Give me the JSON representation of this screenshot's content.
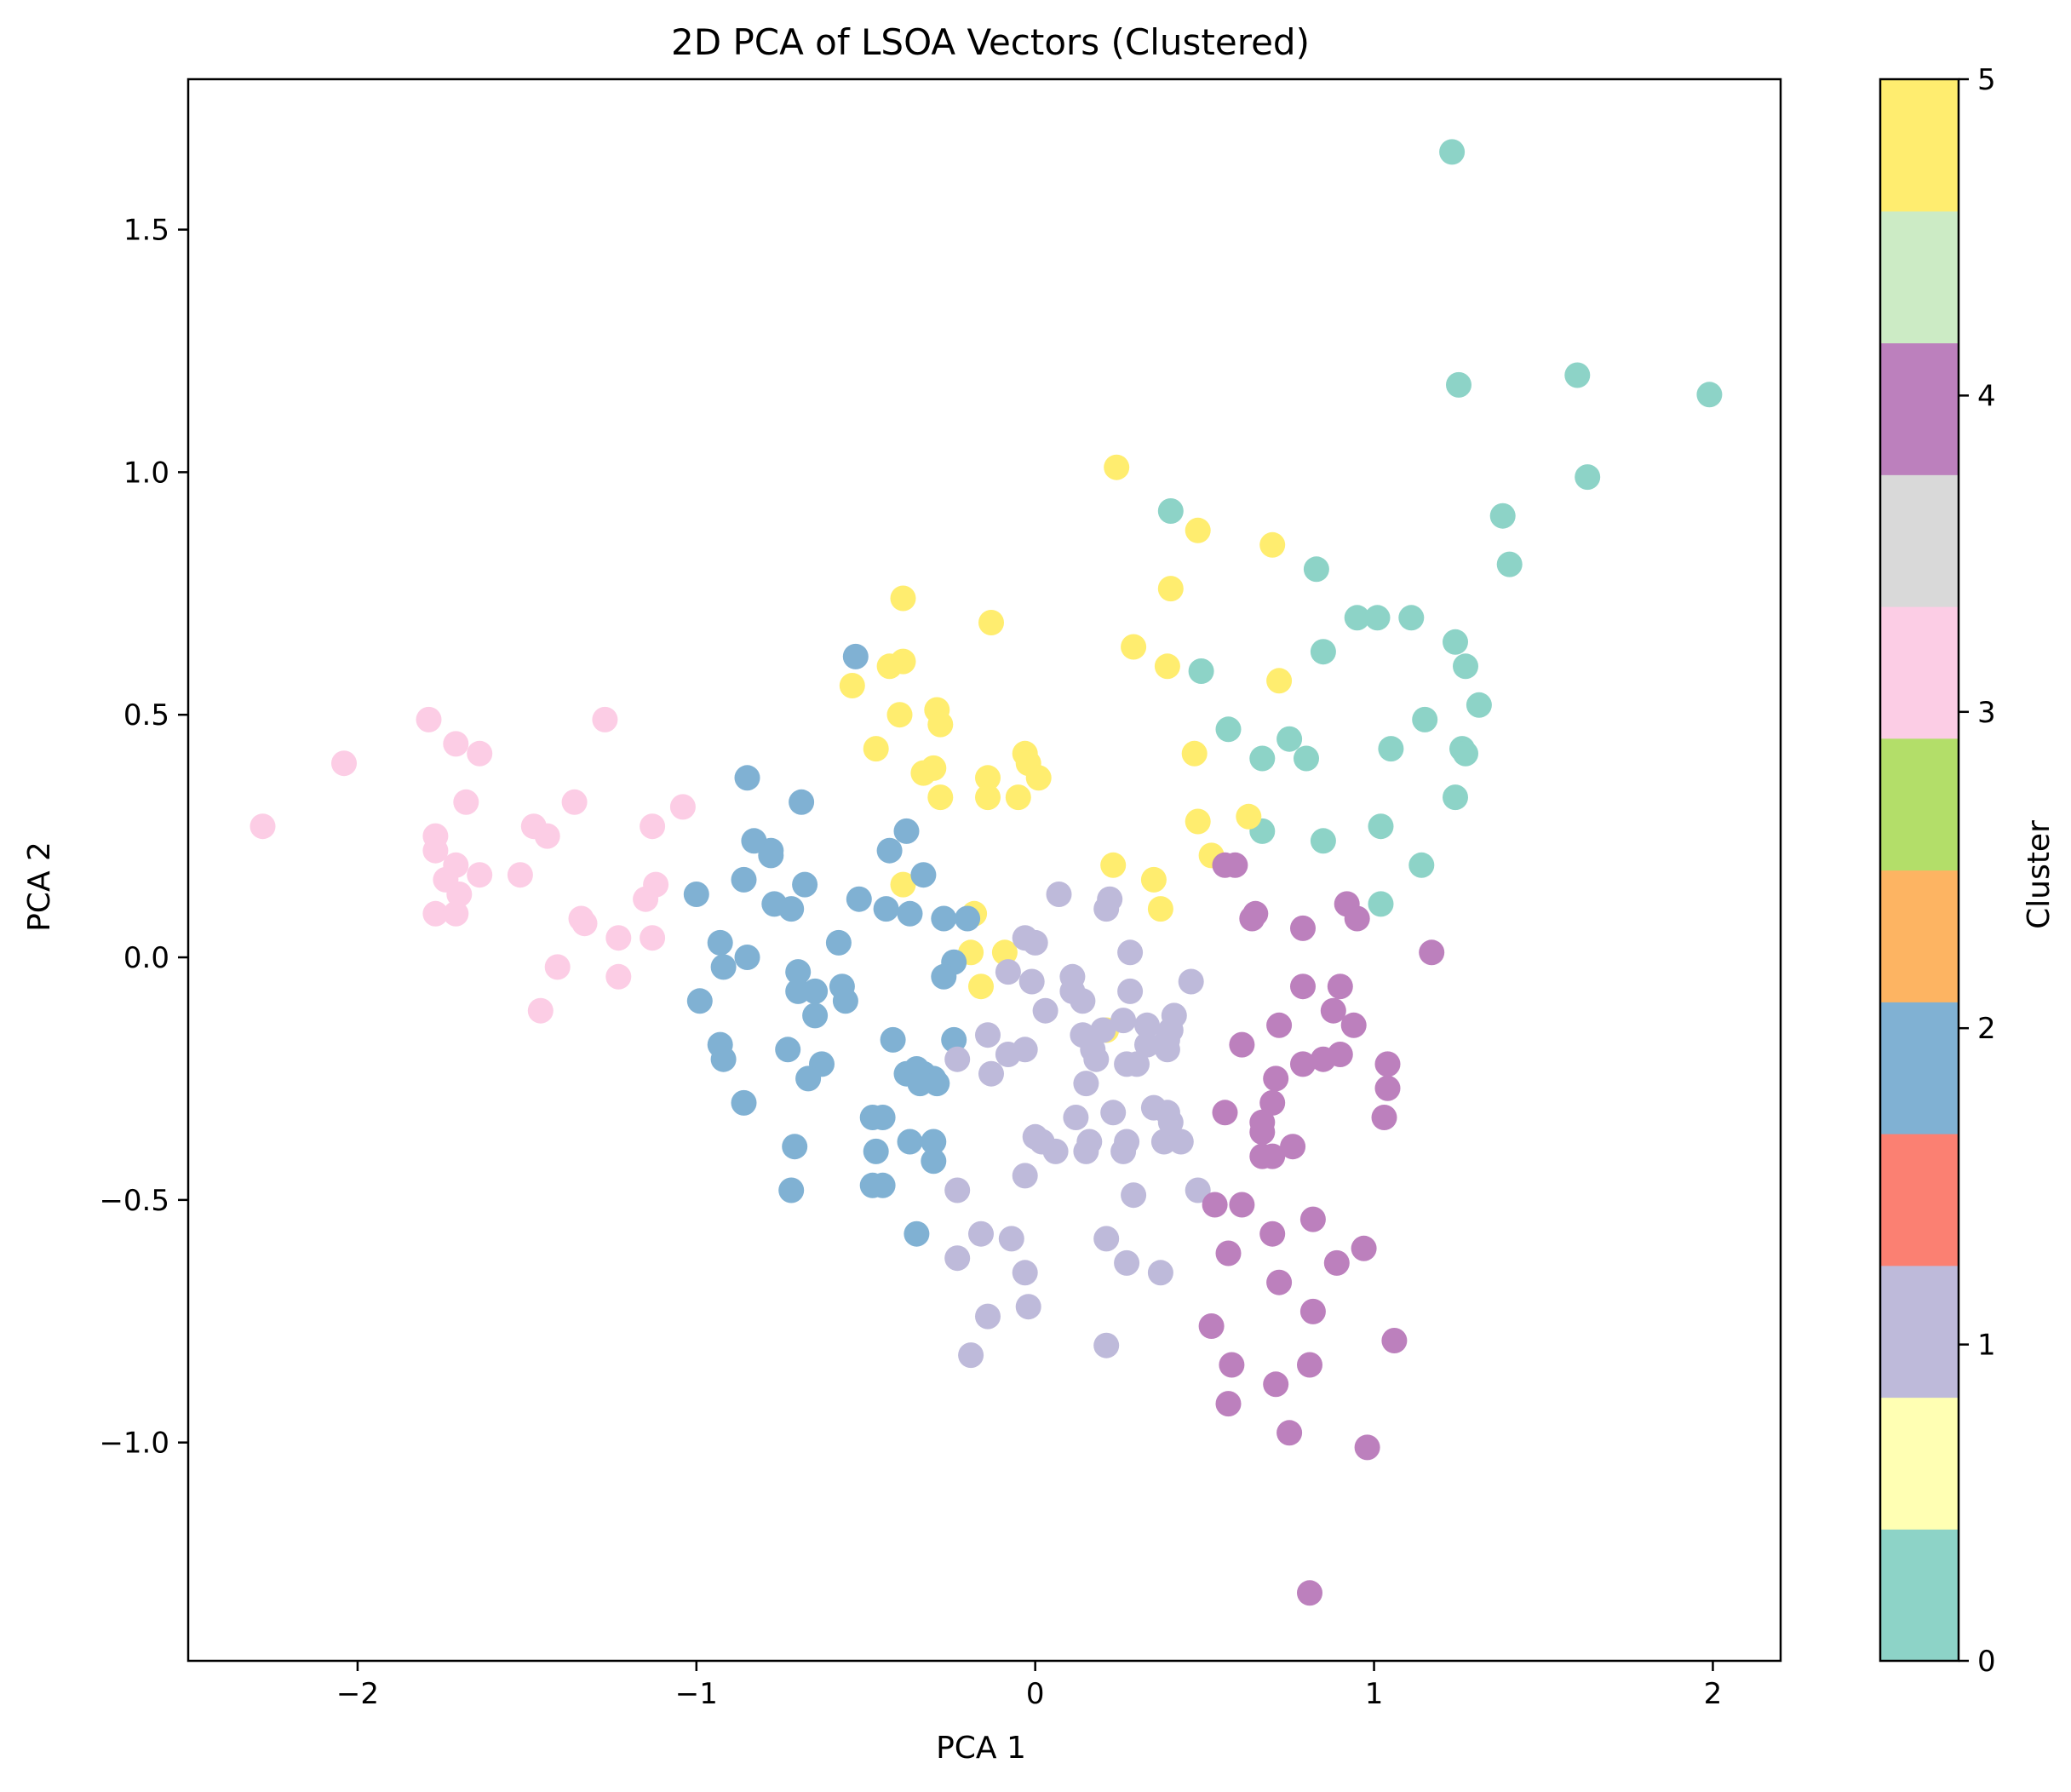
{
  "chart_data": {
    "type": "scatter",
    "title": "2D PCA of LSOA Vectors (Clustered)",
    "xlabel": "PCA 1",
    "ylabel": "PCA 2",
    "xlim": [
      -2.5,
      2.2
    ],
    "ylim": [
      -1.45,
      1.81
    ],
    "xticks": [
      -2,
      -1,
      0,
      1,
      2
    ],
    "xtick_labels": [
      "−2",
      "−1",
      "0",
      "1",
      "2"
    ],
    "yticks": [
      -1.0,
      -0.5,
      0.0,
      0.5,
      1.0,
      1.5
    ],
    "ytick_labels": [
      "−1.0",
      "−0.5",
      "0.0",
      "0.5",
      "1.0",
      "1.5"
    ],
    "grid": false,
    "colorbar": {
      "label": "Cluster",
      "range": [
        0,
        5
      ],
      "ticks": [
        0,
        1,
        2,
        3,
        4,
        5
      ],
      "tick_labels": [
        "0",
        "1",
        "2",
        "3",
        "4",
        "5"
      ],
      "colormap": "Set3",
      "bands": [
        "#8dd3c7",
        "#ffffb3",
        "#bebada",
        "#fb8072",
        "#80b1d3",
        "#fdb462",
        "#b3de69",
        "#fccde5",
        "#d9d9d9",
        "#bc80bd",
        "#ccebc5",
        "#ffed6f"
      ]
    },
    "cluster_colors": {
      "0": "#8dd3c7",
      "1": "#bebada",
      "2": "#80b1d3",
      "3": "#fccde5",
      "4": "#bc80bd",
      "5": "#ffed6f"
    },
    "series": [
      {
        "cluster": 0,
        "points": [
          [
            1.23,
            1.66
          ],
          [
            1.6,
            1.2
          ],
          [
            1.25,
            1.18
          ],
          [
            1.99,
            1.16
          ],
          [
            1.63,
            0.99
          ],
          [
            0.4,
            0.92
          ],
          [
            1.38,
            0.91
          ],
          [
            1.4,
            0.81
          ],
          [
            0.83,
            0.8
          ],
          [
            0.95,
            0.7
          ],
          [
            1.01,
            0.7
          ],
          [
            1.11,
            0.7
          ],
          [
            1.24,
            0.65
          ],
          [
            0.85,
            0.63
          ],
          [
            1.27,
            0.6
          ],
          [
            0.49,
            0.59
          ],
          [
            1.31,
            0.52
          ],
          [
            1.15,
            0.49
          ],
          [
            0.57,
            0.47
          ],
          [
            0.75,
            0.45
          ],
          [
            1.26,
            0.43
          ],
          [
            1.05,
            0.43
          ],
          [
            1.27,
            0.42
          ],
          [
            0.67,
            0.41
          ],
          [
            0.8,
            0.41
          ],
          [
            1.24,
            0.33
          ],
          [
            1.02,
            0.27
          ],
          [
            0.67,
            0.26
          ],
          [
            0.85,
            0.24
          ],
          [
            1.14,
            0.19
          ],
          [
            1.02,
            0.11
          ]
        ]
      },
      {
        "cluster": 5,
        "points": [
          [
            0.24,
            1.01
          ],
          [
            0.48,
            0.88
          ],
          [
            0.7,
            0.85
          ],
          [
            -0.39,
            0.74
          ],
          [
            0.4,
            0.76
          ],
          [
            -0.13,
            0.69
          ],
          [
            0.29,
            0.64
          ],
          [
            -0.39,
            0.61
          ],
          [
            -0.43,
            0.6
          ],
          [
            0.39,
            0.6
          ],
          [
            0.72,
            0.57
          ],
          [
            -0.54,
            0.56
          ],
          [
            -0.29,
            0.51
          ],
          [
            -0.4,
            0.5
          ],
          [
            -0.28,
            0.48
          ],
          [
            -0.47,
            0.43
          ],
          [
            -0.03,
            0.42
          ],
          [
            0.47,
            0.42
          ],
          [
            -0.02,
            0.4
          ],
          [
            -0.33,
            0.38
          ],
          [
            -0.3,
            0.39
          ],
          [
            -0.14,
            0.37
          ],
          [
            0.01,
            0.37
          ],
          [
            -0.28,
            0.33
          ],
          [
            -0.14,
            0.33
          ],
          [
            -0.05,
            0.33
          ],
          [
            0.63,
            0.29
          ],
          [
            0.48,
            0.28
          ],
          [
            0.52,
            0.21
          ],
          [
            0.23,
            0.19
          ],
          [
            0.35,
            0.16
          ],
          [
            -0.39,
            0.15
          ],
          [
            0.37,
            0.1
          ],
          [
            -0.18,
            0.09
          ],
          [
            -0.19,
            0.01
          ],
          [
            -0.09,
            0.01
          ],
          [
            -0.16,
            -0.06
          ],
          [
            0.21,
            -0.15
          ]
        ]
      },
      {
        "cluster": 3,
        "points": [
          [
            -2.28,
            0.27
          ],
          [
            -2.04,
            0.4
          ],
          [
            -1.79,
            0.49
          ],
          [
            -1.71,
            0.44
          ],
          [
            -1.64,
            0.42
          ],
          [
            -1.68,
            0.32
          ],
          [
            -1.27,
            0.49
          ],
          [
            -1.36,
            0.32
          ],
          [
            -1.04,
            0.31
          ],
          [
            -1.48,
            0.27
          ],
          [
            -1.13,
            0.27
          ],
          [
            -1.44,
            0.25
          ],
          [
            -1.77,
            0.25
          ],
          [
            -1.77,
            0.22
          ],
          [
            -1.71,
            0.19
          ],
          [
            -1.64,
            0.17
          ],
          [
            -1.52,
            0.17
          ],
          [
            -1.74,
            0.16
          ],
          [
            -1.12,
            0.15
          ],
          [
            -1.7,
            0.13
          ],
          [
            -1.15,
            0.12
          ],
          [
            -1.77,
            0.09
          ],
          [
            -1.71,
            0.09
          ],
          [
            -1.34,
            0.08
          ],
          [
            -1.33,
            0.07
          ],
          [
            -1.23,
            0.04
          ],
          [
            -1.13,
            0.04
          ],
          [
            -1.41,
            -0.02
          ],
          [
            -1.23,
            -0.04
          ],
          [
            -1.46,
            -0.11
          ]
        ]
      },
      {
        "cluster": 2,
        "points": [
          [
            -0.53,
            0.62
          ],
          [
            -0.85,
            0.37
          ],
          [
            -0.69,
            0.32
          ],
          [
            -0.38,
            0.26
          ],
          [
            -0.83,
            0.24
          ],
          [
            -0.78,
            0.22
          ],
          [
            -0.78,
            0.21
          ],
          [
            -0.43,
            0.22
          ],
          [
            -0.33,
            0.17
          ],
          [
            -0.86,
            0.16
          ],
          [
            -0.68,
            0.15
          ],
          [
            -1.0,
            0.13
          ],
          [
            -0.52,
            0.12
          ],
          [
            -0.77,
            0.11
          ],
          [
            -0.72,
            0.1
          ],
          [
            -0.44,
            0.1
          ],
          [
            -0.37,
            0.09
          ],
          [
            -0.27,
            0.08
          ],
          [
            -0.2,
            0.08
          ],
          [
            -0.58,
            0.03
          ],
          [
            -0.93,
            0.03
          ],
          [
            -0.85,
            0.0
          ],
          [
            -0.92,
            -0.02
          ],
          [
            -0.24,
            -0.01
          ],
          [
            -0.27,
            -0.04
          ],
          [
            -0.7,
            -0.03
          ],
          [
            -0.7,
            -0.07
          ],
          [
            -0.65,
            -0.07
          ],
          [
            -0.57,
            -0.06
          ],
          [
            -0.56,
            -0.09
          ],
          [
            -0.99,
            -0.09
          ],
          [
            -0.65,
            -0.12
          ],
          [
            -0.42,
            -0.17
          ],
          [
            -0.24,
            -0.17
          ],
          [
            -0.93,
            -0.18
          ],
          [
            -0.92,
            -0.21
          ],
          [
            -0.73,
            -0.19
          ],
          [
            -0.63,
            -0.22
          ],
          [
            -0.38,
            -0.24
          ],
          [
            -0.35,
            -0.23
          ],
          [
            -0.33,
            -0.24
          ],
          [
            -0.3,
            -0.25
          ],
          [
            -0.67,
            -0.25
          ],
          [
            -0.34,
            -0.26
          ],
          [
            -0.29,
            -0.26
          ],
          [
            -0.86,
            -0.3
          ],
          [
            -0.48,
            -0.33
          ],
          [
            -0.45,
            -0.33
          ],
          [
            -0.37,
            -0.38
          ],
          [
            -0.3,
            -0.38
          ],
          [
            -0.71,
            -0.39
          ],
          [
            -0.47,
            -0.4
          ],
          [
            -0.3,
            -0.42
          ],
          [
            -0.48,
            -0.47
          ],
          [
            -0.45,
            -0.47
          ],
          [
            -0.72,
            -0.48
          ],
          [
            -0.35,
            -0.57
          ]
        ]
      },
      {
        "cluster": 1,
        "points": [
          [
            0.07,
            0.13
          ],
          [
            0.22,
            0.12
          ],
          [
            0.21,
            0.1
          ],
          [
            -0.03,
            0.04
          ],
          [
            0.0,
            0.03
          ],
          [
            0.28,
            0.01
          ],
          [
            -0.08,
            -0.03
          ],
          [
            0.11,
            -0.04
          ],
          [
            -0.01,
            -0.05
          ],
          [
            0.11,
            -0.07
          ],
          [
            0.46,
            -0.05
          ],
          [
            0.14,
            -0.09
          ],
          [
            0.28,
            -0.07
          ],
          [
            0.41,
            -0.12
          ],
          [
            0.03,
            -0.11
          ],
          [
            0.26,
            -0.13
          ],
          [
            0.33,
            -0.14
          ],
          [
            0.4,
            -0.15
          ],
          [
            -0.14,
            -0.16
          ],
          [
            0.14,
            -0.16
          ],
          [
            0.39,
            -0.17
          ],
          [
            0.2,
            -0.15
          ],
          [
            0.33,
            -0.18
          ],
          [
            0.39,
            -0.19
          ],
          [
            -0.03,
            -0.19
          ],
          [
            -0.08,
            -0.2
          ],
          [
            0.17,
            -0.19
          ],
          [
            0.18,
            -0.21
          ],
          [
            -0.23,
            -0.21
          ],
          [
            0.27,
            -0.22
          ],
          [
            0.3,
            -0.22
          ],
          [
            -0.13,
            -0.24
          ],
          [
            0.15,
            -0.26
          ],
          [
            0.12,
            -0.33
          ],
          [
            0.23,
            -0.32
          ],
          [
            0.35,
            -0.31
          ],
          [
            0.39,
            -0.32
          ],
          [
            0.4,
            -0.34
          ],
          [
            0.0,
            -0.37
          ],
          [
            0.02,
            -0.38
          ],
          [
            0.16,
            -0.38
          ],
          [
            0.27,
            -0.38
          ],
          [
            0.38,
            -0.38
          ],
          [
            0.43,
            -0.38
          ],
          [
            0.15,
            -0.4
          ],
          [
            0.06,
            -0.4
          ],
          [
            0.26,
            -0.4
          ],
          [
            -0.03,
            -0.45
          ],
          [
            -0.23,
            -0.48
          ],
          [
            0.29,
            -0.49
          ],
          [
            0.48,
            -0.48
          ],
          [
            -0.16,
            -0.57
          ],
          [
            -0.07,
            -0.58
          ],
          [
            0.21,
            -0.58
          ],
          [
            -0.23,
            -0.62
          ],
          [
            0.27,
            -0.63
          ],
          [
            -0.03,
            -0.65
          ],
          [
            0.37,
            -0.65
          ],
          [
            -0.14,
            -0.74
          ],
          [
            -0.02,
            -0.72
          ],
          [
            -0.19,
            -0.82
          ],
          [
            0.21,
            -0.8
          ]
        ]
      },
      {
        "cluster": 4,
        "points": [
          [
            0.56,
            0.19
          ],
          [
            0.59,
            0.19
          ],
          [
            0.92,
            0.11
          ],
          [
            0.65,
            0.09
          ],
          [
            0.64,
            0.08
          ],
          [
            0.95,
            0.08
          ],
          [
            0.79,
            0.06
          ],
          [
            1.17,
            0.01
          ],
          [
            0.79,
            -0.06
          ],
          [
            0.9,
            -0.06
          ],
          [
            0.94,
            -0.14
          ],
          [
            0.72,
            -0.14
          ],
          [
            0.88,
            -0.11
          ],
          [
            0.61,
            -0.18
          ],
          [
            0.79,
            -0.22
          ],
          [
            0.85,
            -0.21
          ],
          [
            0.9,
            -0.2
          ],
          [
            1.04,
            -0.22
          ],
          [
            0.71,
            -0.25
          ],
          [
            1.04,
            -0.27
          ],
          [
            0.56,
            -0.32
          ],
          [
            0.7,
            -0.3
          ],
          [
            1.03,
            -0.33
          ],
          [
            0.67,
            -0.34
          ],
          [
            0.67,
            -0.36
          ],
          [
            0.67,
            -0.41
          ],
          [
            0.7,
            -0.41
          ],
          [
            0.76,
            -0.39
          ],
          [
            0.53,
            -0.51
          ],
          [
            0.61,
            -0.51
          ],
          [
            0.82,
            -0.54
          ],
          [
            0.7,
            -0.57
          ],
          [
            0.57,
            -0.61
          ],
          [
            0.97,
            -0.6
          ],
          [
            0.89,
            -0.63
          ],
          [
            0.72,
            -0.67
          ],
          [
            0.82,
            -0.73
          ],
          [
            0.52,
            -0.76
          ],
          [
            1.06,
            -0.79
          ],
          [
            0.58,
            -0.84
          ],
          [
            0.81,
            -0.84
          ],
          [
            0.71,
            -0.88
          ],
          [
            0.57,
            -0.92
          ],
          [
            0.75,
            -0.98
          ],
          [
            0.98,
            -1.01
          ],
          [
            0.81,
            -1.31
          ]
        ]
      }
    ]
  }
}
